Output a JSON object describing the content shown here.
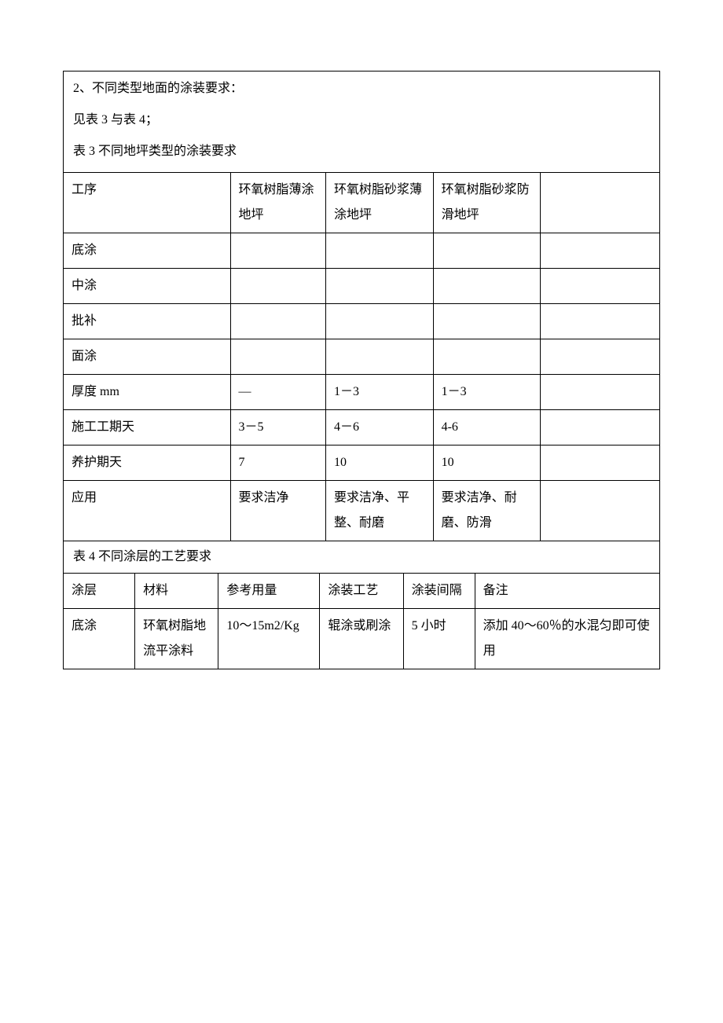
{
  "intro": {
    "line1": "2、不同类型地面的涂装要求：",
    "line2": "见表 3 与表 4；",
    "line3": "表 3 不同地坪类型的涂装要求"
  },
  "table3": {
    "col_widths": [
      "28%",
      "16%",
      "18%",
      "18%",
      "20%"
    ],
    "header": [
      "工序",
      "环氧树脂薄涂地坪",
      "环氧树脂砂浆薄涂地坪",
      "环氧树脂砂浆防滑地坪",
      ""
    ],
    "rows": [
      [
        "底涂",
        "",
        "",
        "",
        ""
      ],
      [
        "中涂",
        "",
        "",
        "",
        ""
      ],
      [
        "批补",
        "",
        "",
        "",
        ""
      ],
      [
        "面涂",
        "",
        "",
        "",
        ""
      ],
      [
        "厚度 mm",
        "—",
        "1－3",
        "1－3",
        ""
      ],
      [
        "施工工期天",
        "3－5",
        "4－6",
        "4-6",
        ""
      ],
      [
        "养护期天",
        "7",
        "10",
        "10",
        ""
      ],
      [
        "应用",
        "要求洁净",
        "要求洁净、平整、耐磨",
        "要求洁净、耐磨、防滑",
        ""
      ]
    ]
  },
  "caption4": "表 4 不同涂层的工艺要求",
  "table4": {
    "col_widths": [
      "12%",
      "14%",
      "17%",
      "14%",
      "12%",
      "31%"
    ],
    "header": [
      "涂层",
      "材料",
      "参考用量",
      "涂装工艺",
      "涂装间隔",
      "备注"
    ],
    "rows": [
      [
        "底涂",
        "环氧树脂地流平涂料",
        "10～15m2/Kg",
        "辊涂或刷涂",
        "5 小时",
        "添加 40～60％的水混匀即可使用"
      ]
    ]
  },
  "style": {
    "font_family": "SimSun",
    "font_size_pt": 12,
    "text_color": "#000000",
    "background_color": "#ffffff",
    "border_color": "#000000",
    "line_height": 2.0
  }
}
